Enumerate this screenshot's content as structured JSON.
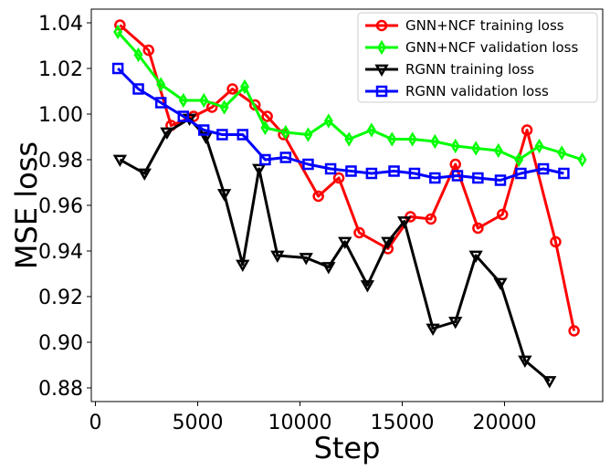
{
  "chart_data": {
    "type": "line",
    "title": "",
    "xlabel": "Step",
    "ylabel": "MSE loss",
    "xlim": [
      -200,
      24800
    ],
    "ylim": [
      0.874,
      1.046
    ],
    "xticks": [
      0,
      5000,
      10000,
      15000,
      20000
    ],
    "xtick_labels": [
      "0",
      "5000",
      "10000",
      "15000",
      "20000"
    ],
    "yticks": [
      0.88,
      0.9,
      0.92,
      0.94,
      0.96,
      0.98,
      1.0,
      1.02,
      1.04
    ],
    "ytick_labels": [
      "0.88",
      "0.90",
      "0.92",
      "0.94",
      "0.96",
      "0.98",
      "1.00",
      "1.02",
      "1.04"
    ],
    "grid": false,
    "legend_position": "top-right",
    "series": [
      {
        "name": "GNN+NCF training loss",
        "color": "#ff0000",
        "marker": "circle",
        "x": [
          1200,
          2600,
          3700,
          4800,
          5700,
          6700,
          7800,
          8400,
          9200,
          10900,
          11900,
          12900,
          14300,
          15400,
          16400,
          17600,
          18700,
          19900,
          21100,
          22500,
          23400
        ],
        "y": [
          1.039,
          1.028,
          0.995,
          0.999,
          1.003,
          1.011,
          1.004,
          0.999,
          0.991,
          0.964,
          0.972,
          0.948,
          0.941,
          0.955,
          0.954,
          0.978,
          0.95,
          0.956,
          0.993,
          0.944,
          0.905
        ]
      },
      {
        "name": "GNN+NCF validation loss",
        "color": "#00ff00",
        "marker": "diamond",
        "x": [
          1100,
          2100,
          3200,
          4300,
          5300,
          6300,
          7300,
          8300,
          9300,
          10400,
          11400,
          12400,
          13500,
          14500,
          15500,
          16600,
          17600,
          18600,
          19700,
          20700,
          21700,
          22800,
          23800
        ],
        "y": [
          1.036,
          1.026,
          1.013,
          1.006,
          1.006,
          1.003,
          1.012,
          0.994,
          0.992,
          0.991,
          0.997,
          0.989,
          0.993,
          0.989,
          0.989,
          0.988,
          0.986,
          0.985,
          0.984,
          0.98,
          0.986,
          0.983,
          0.98
        ]
      },
      {
        "name": "RGNN training loss",
        "color": "#000000",
        "marker": "triangle-down",
        "x": [
          1200,
          2400,
          3500,
          4600,
          5400,
          6300,
          7200,
          8000,
          8900,
          10300,
          11400,
          12200,
          13300,
          14300,
          15100,
          16500,
          17600,
          18600,
          19800,
          21000,
          22200
        ],
        "y": [
          0.98,
          0.974,
          0.992,
          0.998,
          0.99,
          0.965,
          0.934,
          0.976,
          0.938,
          0.937,
          0.933,
          0.944,
          0.925,
          0.944,
          0.953,
          0.906,
          0.909,
          0.938,
          0.926,
          0.892,
          0.883
        ]
      },
      {
        "name": "RGNN validation loss",
        "color": "#0000ff",
        "marker": "square",
        "x": [
          1100,
          2100,
          3200,
          4300,
          5300,
          6200,
          7200,
          8300,
          9300,
          10400,
          11500,
          12500,
          13500,
          14600,
          15600,
          16600,
          17700,
          18700,
          19800,
          20800,
          21900,
          22900
        ],
        "y": [
          1.02,
          1.011,
          1.005,
          0.999,
          0.993,
          0.991,
          0.991,
          0.98,
          0.981,
          0.978,
          0.976,
          0.975,
          0.974,
          0.975,
          0.974,
          0.972,
          0.973,
          0.972,
          0.971,
          0.974,
          0.976,
          0.974
        ]
      }
    ]
  }
}
